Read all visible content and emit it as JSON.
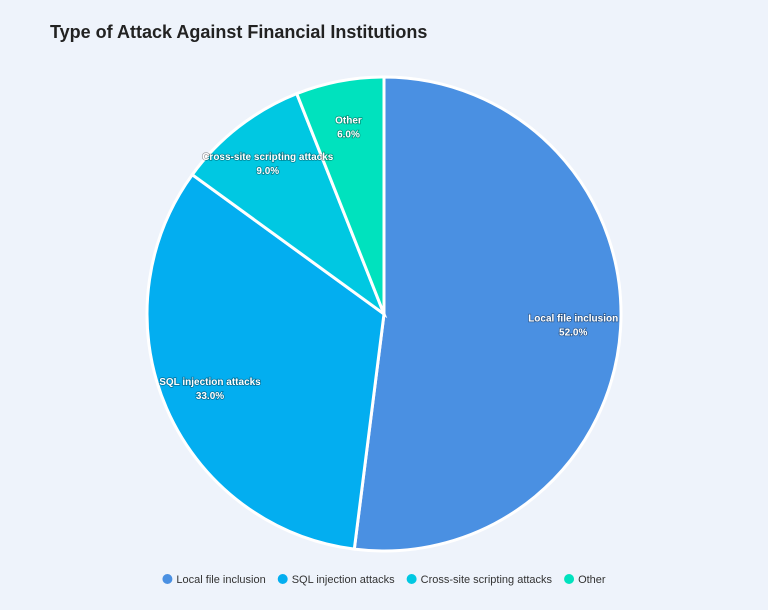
{
  "chart_data": {
    "type": "pie",
    "title": "Type of Attack Against Financial Institutions",
    "categories": [
      "Local file inclusion",
      "SQL injection attacks",
      "Cross-site scripting attacks",
      "Other"
    ],
    "values": [
      52,
      33,
      9,
      6
    ],
    "value_labels": [
      "52.0%",
      "33.0%",
      "9.0%",
      "6.0%"
    ],
    "colors": [
      "#4a90e2",
      "#03aef0",
      "#00c8e2",
      "#00e2be"
    ]
  }
}
